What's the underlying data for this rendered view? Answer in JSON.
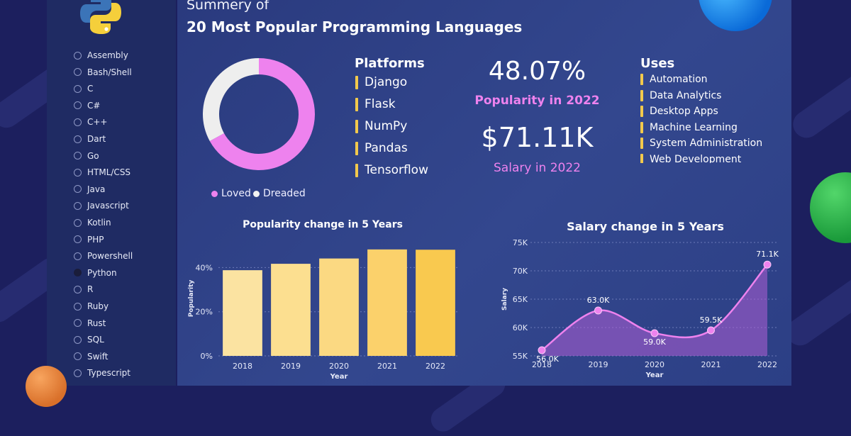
{
  "header": {
    "subtitle": "Summery of",
    "title": "20 Most Popular Programming Languages"
  },
  "sidebar": {
    "items": [
      {
        "label": "Assembly",
        "selected": false
      },
      {
        "label": "Bash/Shell",
        "selected": false
      },
      {
        "label": "C",
        "selected": false
      },
      {
        "label": "C#",
        "selected": false
      },
      {
        "label": "C++",
        "selected": false
      },
      {
        "label": "Dart",
        "selected": false
      },
      {
        "label": "Go",
        "selected": false
      },
      {
        "label": "HTML/CSS",
        "selected": false
      },
      {
        "label": "Java",
        "selected": false
      },
      {
        "label": "Javascript",
        "selected": false
      },
      {
        "label": "Kotlin",
        "selected": false
      },
      {
        "label": "PHP",
        "selected": false
      },
      {
        "label": "Powershell",
        "selected": false
      },
      {
        "label": "Python",
        "selected": true
      },
      {
        "label": "R",
        "selected": false
      },
      {
        "label": "Ruby",
        "selected": false
      },
      {
        "label": "Rust",
        "selected": false
      },
      {
        "label": "SQL",
        "selected": false
      },
      {
        "label": "Swift",
        "selected": false
      },
      {
        "label": "Typescript",
        "selected": false
      }
    ]
  },
  "platforms": {
    "title": "Platforms",
    "items": [
      "Django",
      "Flask",
      "NumPy",
      "Pandas",
      "Tensorflow"
    ]
  },
  "kpis": {
    "popularity_value": "48.07%",
    "popularity_label": "Popularity in 2022",
    "salary_value": "$71.11K",
    "salary_label": "Salary in 2022"
  },
  "uses": {
    "title": "Uses",
    "items": [
      "Automation",
      "Data Analytics",
      "Desktop Apps",
      "Machine Learning",
      "System Administration",
      "Web Development"
    ]
  },
  "colors": {
    "accent_pink": "#ee82ee",
    "accent_yellow": "#f2c94c",
    "panel_blue": "#2f4288",
    "sidebar_blue": "#1f2b63"
  },
  "chart_data": [
    {
      "type": "pie",
      "subtype": "donut",
      "categories": [
        "Loved",
        "Dreaded"
      ],
      "values": [
        67,
        33
      ],
      "colors": [
        "#ee82ee",
        "#eeeeee"
      ],
      "legend": "bottom"
    },
    {
      "type": "bar",
      "title": "Popularity change in 5 Years",
      "xlabel": "Year",
      "ylabel": "Popularity",
      "categories": [
        "2018",
        "2019",
        "2020",
        "2021",
        "2022"
      ],
      "values": [
        38.8,
        41.7,
        44.1,
        48.2,
        48.07
      ],
      "ylim": [
        0,
        52
      ],
      "yticks": [
        "0%",
        "20%",
        "40%"
      ],
      "ytick_values": [
        0,
        20,
        40
      ],
      "grid": true
    },
    {
      "type": "area",
      "title": "Salary change in 5 Years",
      "xlabel": "Year",
      "ylabel": "Salary",
      "categories": [
        "2018",
        "2019",
        "2020",
        "2021",
        "2022"
      ],
      "values": [
        56.0,
        63.0,
        59.0,
        59.5,
        71.1
      ],
      "data_labels": [
        "56.0K",
        "63.0K",
        "59.0K",
        "59.5K",
        "71.1K"
      ],
      "ylim": [
        55,
        75
      ],
      "yticks": [
        "55K",
        "60K",
        "65K",
        "70K",
        "75K"
      ],
      "ytick_values": [
        55,
        60,
        65,
        70,
        75
      ],
      "grid": true
    }
  ]
}
